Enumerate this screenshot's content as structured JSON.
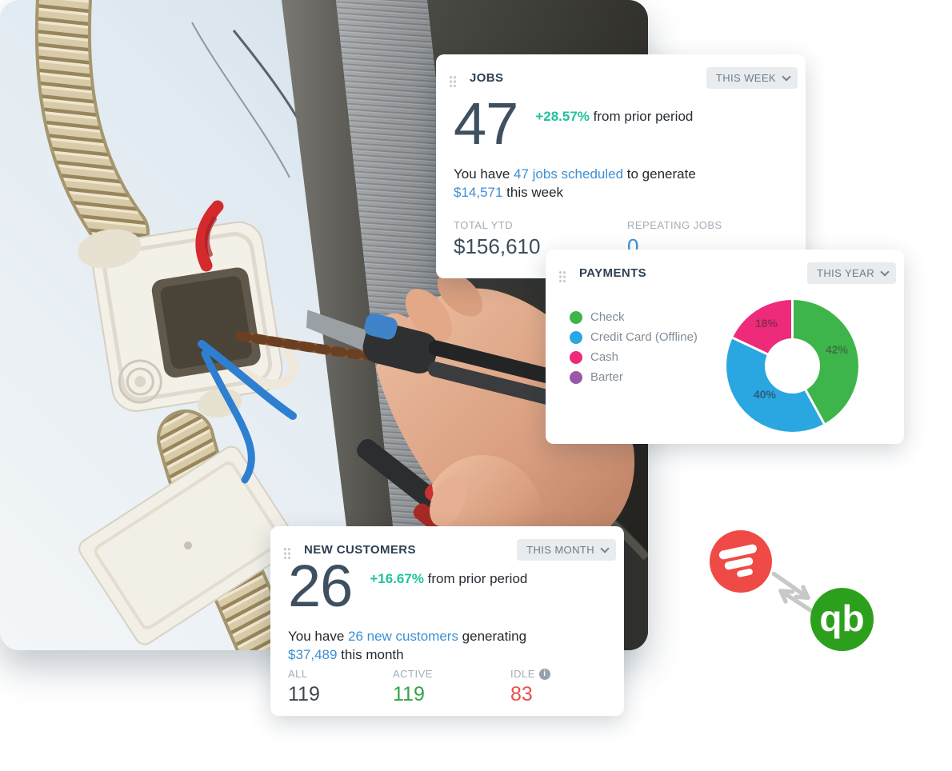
{
  "page": {
    "background_color": "#ffffff"
  },
  "hero_photo": {
    "alt": "electrician hands stripping wires at a wall junction box"
  },
  "theme": {
    "delta_color": "#1fc39e",
    "link_color": "#3d8fd4",
    "title_color": "#2e4052",
    "big_number_color": "#3e5060"
  },
  "cards": {
    "jobs": {
      "title": "JOBS",
      "period": "THIS WEEK",
      "value": "47",
      "delta": "+28.57%",
      "delta_suffix": "from prior period",
      "sentence": {
        "pre": "You have ",
        "link1": "47 jobs scheduled",
        "mid": " to generate",
        "link2": "$14,571",
        "post": " this week"
      },
      "stats": [
        {
          "label": "TOTAL YTD",
          "value": "$156,610",
          "value_color": "#3e4e5c"
        },
        {
          "label": "REPEATING JOBS",
          "value": "0",
          "value_color": "#3d8fd4"
        }
      ]
    },
    "payments": {
      "title": "PAYMENTS",
      "period": "THIS YEAR"
    },
    "new_customers": {
      "title": "NEW CUSTOMERS",
      "period": "THIS MONTH",
      "value": "26",
      "delta": "+16.67%",
      "delta_suffix": "from prior period",
      "sentence": {
        "pre": "You have ",
        "link1": "26 new customers",
        "mid": " generating",
        "link2": "$37,489",
        "post": " this month"
      },
      "stats": [
        {
          "label": "ALL",
          "value": "119",
          "value_color": "#3e4750"
        },
        {
          "label": "ACTIVE",
          "value": "119",
          "value_color": "#33a347"
        },
        {
          "label": "IDLE",
          "value": "83",
          "value_color": "#e8504a",
          "info_icon": "info-icon"
        }
      ]
    }
  },
  "chart_data": {
    "type": "pie",
    "donut": true,
    "title": "PAYMENTS",
    "period": "THIS YEAR",
    "categories": [
      "Check",
      "Credit Card (Offline)",
      "Cash",
      "Barter"
    ],
    "values": [
      42,
      40,
      18,
      0
    ],
    "unit": "%",
    "colors": [
      "#3db54a",
      "#2aa7e0",
      "#ee2a7b",
      "#9a57a8"
    ],
    "slice_labels": [
      "42%",
      "40%",
      "18%"
    ],
    "slice_label_colors": [
      "#3c7347",
      "#2d5c7e",
      "#8e2b4f"
    ],
    "start_angle": "top",
    "direction": "clockwise",
    "legend_position": "left",
    "hole_ratio": 0.42
  },
  "integration_badges": {
    "left_logo_name": "red-swirl-app-logo",
    "left_logo_color": "#ef4a45",
    "sync_icon_name": "sync-arrows-icon",
    "sync_arrow_color": "#c8c8c8",
    "right_logo_name": "quickbooks-logo",
    "right_logo_color": "#2ca01c",
    "right_logo_text": "qb"
  }
}
